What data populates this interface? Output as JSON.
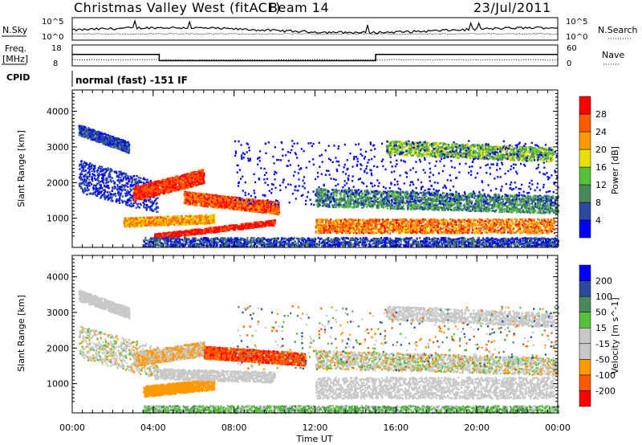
{
  "header": {
    "station": "Christmas Valley West (fitACF)",
    "beam": "Beam 14",
    "date": "23/Jul/2011"
  },
  "top_panels": {
    "nsky_label": "N.Sky",
    "nsearch_label": "N.Search",
    "freq_label_1": "Freq.",
    "freq_label_2": "[MHz]",
    "nave_label": "Nave",
    "cpid_label": "CPID",
    "noise_ticks": [
      "10^5",
      "10^0"
    ],
    "noise_ticks_right": [
      "10^5",
      "10^0"
    ],
    "freq_ticks": [
      "18",
      "8"
    ],
    "nave_ticks": [
      "60",
      "0"
    ],
    "cpid_text": "normal (fast) -151 IF"
  },
  "colors": {
    "power": [
      "#0000ff",
      "#2b4aa0",
      "#4a8a5a",
      "#55c23a",
      "#e8e000",
      "#ff9900",
      "#ff5a00",
      "#ff0000"
    ],
    "velocity": [
      "#ff0000",
      "#ff5a00",
      "#ff9900",
      "#c8c8c8",
      "#c8c8c8",
      "#55c23a",
      "#4a8a5a",
      "#2b4aa0",
      "#0000ff"
    ],
    "accent_frame": "#000000"
  },
  "chart_data": [
    {
      "type": "heatmap",
      "name": "power",
      "ylabel": "Slant Range [km]",
      "yticks": [
        "1000",
        "2000",
        "3000",
        "4000"
      ],
      "colorbar_label": "Power [dB]",
      "colorbar_ticks": [
        "4",
        "8",
        "12",
        "16",
        "20",
        "24",
        "28"
      ]
    },
    {
      "type": "heatmap",
      "name": "velocity",
      "ylabel": "Slant Range [km]",
      "yticks": [
        "1000",
        "2000",
        "3000",
        "4000"
      ],
      "colorbar_label": "Velocity [m s^-1]",
      "colorbar_ticks": [
        "200",
        "100",
        "50",
        "15",
        "-15",
        "-50",
        "-100",
        "-200"
      ],
      "xlabel": "Time UT",
      "xticks": [
        "00:00",
        "04:00",
        "08:00",
        "12:00",
        "16:00",
        "20:00",
        "00:00"
      ]
    },
    {
      "type": "line",
      "name": "frequency",
      "x_hours": [
        0,
        4.3,
        4.3,
        15,
        15,
        24
      ],
      "y_mhz": [
        13.5,
        13.5,
        10.5,
        10.5,
        13.5,
        13.5
      ],
      "ylim": [
        8,
        18
      ]
    }
  ]
}
